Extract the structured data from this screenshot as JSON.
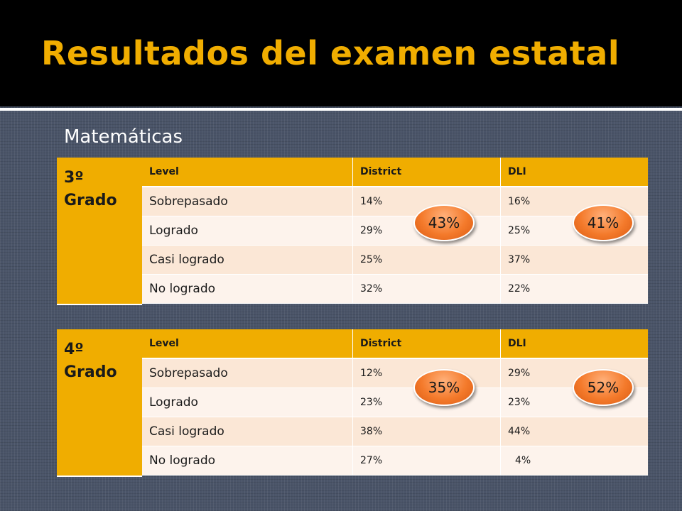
{
  "slide": {
    "title": "Resultados del examen estatal",
    "subject": "Matemáticas"
  },
  "tables": [
    {
      "grade_number": "3º",
      "grade_word": "Grado",
      "headers": [
        "Level",
        "District",
        "DLI"
      ],
      "rows": [
        [
          "Sobrepasado",
          "14%",
          "16%"
        ],
        [
          "Logrado",
          "29%",
          "25%"
        ],
        [
          "Casi logrado",
          "25%",
          "37%"
        ],
        [
          "No logrado",
          "32%",
          "22%"
        ]
      ],
      "bubbles": {
        "district": "43%",
        "dli": "41%"
      }
    },
    {
      "grade_number": "4º",
      "grade_word": "Grado",
      "headers": [
        "Level",
        "District",
        "DLI"
      ],
      "rows": [
        [
          "Sobrepasado",
          "12%",
          "29%"
        ],
        [
          "Logrado",
          "23%",
          "23%"
        ],
        [
          "Casi logrado",
          "38%",
          "44%"
        ],
        [
          "No logrado",
          "27%",
          "4%"
        ]
      ],
      "bubbles": {
        "district": "35%",
        "dli": "52%"
      }
    }
  ],
  "colors": {
    "accent": "#f0ad00",
    "row_light": "#fdf3ec",
    "row_dark": "#fbe7d6",
    "bubble": "#f47a2b",
    "background": "#4a5468"
  }
}
